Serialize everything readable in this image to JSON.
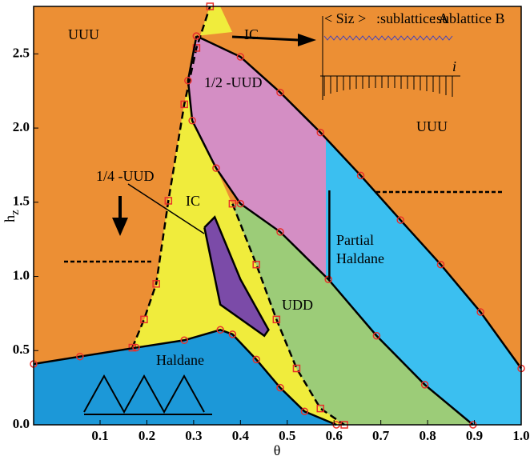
{
  "chart_data": {
    "type": "line",
    "xlabel": "θ",
    "ylabel": "h",
    "ylabel_sub": "z",
    "xlim": [
      -0.042,
      1.0
    ],
    "ylim": [
      0,
      2.82
    ],
    "xticks": [
      0.1,
      0.2,
      0.3,
      0.4,
      0.5,
      0.6,
      0.7,
      0.8,
      0.9,
      {
        "value": 1,
        "label": "1.0"
      }
    ],
    "yticks": [
      {
        "value": 0,
        "label": "0.0"
      },
      0.5,
      {
        "value": 1,
        "label": "1.0"
      },
      1.5,
      {
        "value": 2,
        "label": "2.0"
      },
      2.5
    ],
    "series": [
      {
        "x": [
          0.169,
          0.194,
          0.22,
          0.246,
          0.28,
          0.306,
          0.335
        ],
        "y": [
          0.52,
          0.71,
          0.95,
          1.51,
          2.16,
          2.54,
          2.82
        ],
        "style": "dashed",
        "marker": "square",
        "color": "#000000"
      },
      {
        "x": [
          0.306,
          0.4,
          0.485,
          0.571,
          0.657,
          0.742,
          0.828,
          0.913,
          1.0
        ],
        "y": [
          2.62,
          2.48,
          2.24,
          1.97,
          1.68,
          1.38,
          1.08,
          0.76,
          0.38
        ],
        "style": "solid",
        "marker": "circle",
        "color": "#000000"
      },
      {
        "x": [
          0.306,
          0.288,
          0.297,
          0.348,
          0.4,
          0.485,
          0.588,
          0.691,
          0.794,
          0.897
        ],
        "y": [
          2.62,
          2.32,
          2.05,
          1.73,
          1.49,
          1.3,
          0.98,
          0.6,
          0.27,
          0
        ],
        "style": "solid",
        "marker": "circle",
        "color": "#000000"
      },
      {
        "x": [
          0.59,
          0.59
        ],
        "y": [
          1.58,
          0.98
        ],
        "style": "solid",
        "marker": "none",
        "color": "#000000"
      },
      {
        "x": [
          0.383,
          0.434,
          0.477,
          0.52,
          0.571,
          0.622
        ],
        "y": [
          1.49,
          1.08,
          0.71,
          0.38,
          0.11,
          0
        ],
        "style": "dashed",
        "marker": "square",
        "color": "#000000"
      },
      {
        "x": [
          -0.042,
          0.057,
          0.177,
          0.28,
          0.357,
          0.383,
          0.434,
          0.485,
          0.537,
          0.605
        ],
        "y": [
          0.41,
          0.46,
          0.52,
          0.57,
          0.64,
          0.61,
          0.44,
          0.25,
          0.09,
          0
        ],
        "style": "solid",
        "marker": "circle",
        "color": "#000000"
      },
      {
        "x": [
          0.323,
          0.345,
          0.4,
          0.46,
          0.451,
          0.357,
          0.323
        ],
        "y": [
          1.33,
          1.4,
          0.98,
          0.64,
          0.6,
          0.81,
          1.33
        ],
        "style": "solid",
        "marker": "none",
        "color": "#000000",
        "fill": "#7b4ba8"
      }
    ],
    "annotations": [
      "UUU",
      "IC",
      "1/2 -UUD",
      "UUU",
      "1/4 -UUD",
      "IC",
      "Partial",
      "Haldane",
      "UDD",
      "Haldane",
      "< Siz >",
      ":sublattice A",
      ":sublattice B",
      "i"
    ]
  }
}
